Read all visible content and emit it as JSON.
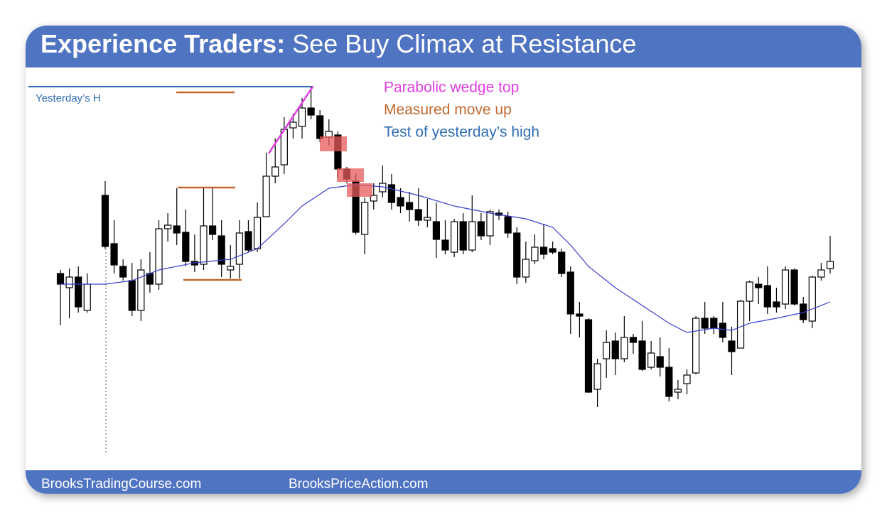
{
  "header": {
    "title_bold": "Experience Traders:",
    "title_rest": "See Buy Climax at Resistance"
  },
  "chart_data": {
    "type": "candlestick",
    "categories": [
      null,
      null,
      null,
      null,
      null,
      null,
      null,
      null,
      null,
      null,
      null,
      null,
      null,
      null,
      null,
      null,
      null,
      null,
      null,
      null,
      null,
      null,
      null,
      null,
      null,
      null,
      null,
      null,
      null,
      null,
      null,
      null,
      null,
      null,
      null,
      null,
      null,
      null,
      null,
      null,
      null,
      null,
      null,
      null,
      null,
      null,
      null,
      null,
      null,
      null,
      null,
      null,
      null,
      null,
      null,
      null,
      null,
      null,
      null,
      null,
      null,
      null,
      null,
      null,
      null,
      null,
      null,
      null,
      null,
      null,
      null,
      null,
      null,
      null,
      null,
      null,
      null,
      null,
      null,
      null,
      null,
      null,
      null,
      null,
      null,
      null,
      null
    ],
    "open": [
      315,
      295,
      310,
      263,
      null,
      425,
      357,
      325,
      305,
      263,
      315,
      300,
      378,
      382,
      373,
      332,
      328,
      382,
      368,
      320,
      328,
      374,
      350,
      395,
      452,
      468,
      520,
      522,
      548,
      537,
      507,
      510,
      462,
      445,
      370,
      417,
      430,
      440,
      422,
      415,
      405,
      390,
      388,
      362,
      345,
      388,
      348,
      388,
      368,
      400,
      395,
      372,
      310,
      333,
      352,
      350,
      345,
      317,
      258,
      250,
      152,
      195,
      220,
      195,
      225,
      220,
      183,
      198,
      183,
      148,
      160,
      175,
      252,
      252,
      245,
      220,
      210,
      276,
      300,
      298,
      275,
      272,
      320,
      272,
      248,
      310,
      322
    ],
    "high": [
      320,
      322,
      325,
      315,
      null,
      445,
      390,
      335,
      330,
      335,
      345,
      390,
      400,
      435,
      405,
      370,
      435,
      435,
      390,
      355,
      390,
      390,
      415,
      485,
      505,
      535,
      540,
      562,
      578,
      545,
      532,
      515,
      465,
      455,
      422,
      442,
      467,
      455,
      435,
      430,
      435,
      420,
      415,
      390,
      392,
      400,
      425,
      400,
      405,
      405,
      402,
      380,
      360,
      370,
      385,
      360,
      350,
      325,
      275,
      252,
      195,
      235,
      232,
      255,
      230,
      248,
      220,
      225,
      210,
      165,
      180,
      255,
      275,
      255,
      275,
      240,
      278,
      305,
      310,
      325,
      295,
      325,
      322,
      282,
      312,
      330,
      368
    ],
    "low": [
      242,
      252,
      260,
      260,
      null,
      350,
      315,
      305,
      255,
      248,
      288,
      292,
      360,
      355,
      325,
      317,
      320,
      362,
      310,
      308,
      308,
      345,
      345,
      395,
      442,
      455,
      505,
      505,
      532,
      500,
      495,
      450,
      442,
      370,
      342,
      405,
      422,
      405,
      400,
      388,
      382,
      380,
      337,
      342,
      338,
      342,
      345,
      362,
      355,
      390,
      365,
      300,
      302,
      328,
      335,
      342,
      310,
      230,
      225,
      147,
      127,
      168,
      172,
      190,
      202,
      178,
      180,
      170,
      135,
      138,
      145,
      173,
      230,
      230,
      218,
      172,
      210,
      248,
      272,
      258,
      260,
      265,
      270,
      245,
      238,
      305,
      315
    ],
    "close": [
      300,
      310,
      268,
      300,
      null,
      353,
      327,
      310,
      263,
      320,
      300,
      378,
      383,
      372,
      332,
      327,
      382,
      370,
      328,
      325,
      372,
      348,
      394,
      452,
      465,
      518,
      528,
      548,
      538,
      505,
      515,
      462,
      448,
      373,
      415,
      425,
      442,
      415,
      410,
      405,
      390,
      394,
      363,
      348,
      388,
      348,
      388,
      368,
      402,
      397,
      372,
      310,
      335,
      352,
      342,
      345,
      315,
      258,
      255,
      148,
      188,
      218,
      195,
      225,
      218,
      180,
      203,
      183,
      142,
      152,
      172,
      252,
      238,
      238,
      225,
      205,
      276,
      303,
      295,
      268,
      268,
      320,
      272,
      250,
      310,
      320,
      332
    ],
    "up_color": "#ffffff",
    "down_color": "#000000",
    "ylim": [
      60,
      600
    ],
    "moving_average": {
      "color": "#3a3fd0",
      "x": [
        0,
        5,
        8,
        11,
        15,
        19,
        22,
        25,
        27,
        30,
        33,
        36,
        40,
        44,
        48,
        52,
        55,
        57,
        59,
        62,
        65,
        68,
        70,
        73,
        75,
        77,
        80,
        83,
        86
      ],
      "values": [
        300,
        300,
        305,
        320,
        330,
        335,
        350,
        385,
        410,
        435,
        440,
        437,
        425,
        410,
        400,
        392,
        380,
        355,
        325,
        295,
        270,
        245,
        232,
        238,
        235,
        245,
        252,
        260,
        275
      ]
    }
  },
  "annotations": {
    "yesterday_high": "Yesterday’s H",
    "legend": [
      {
        "text": "Parabolic wedge top",
        "color": "#e23ee2"
      },
      {
        "text": "Measured move up",
        "color": "#c2682e"
      },
      {
        "text": "Test of yesterday’s high",
        "color": "#2f6db5"
      }
    ]
  },
  "footer": {
    "left": "BrooksTradingCourse.com",
    "right": "BrooksPriceAction.com"
  }
}
